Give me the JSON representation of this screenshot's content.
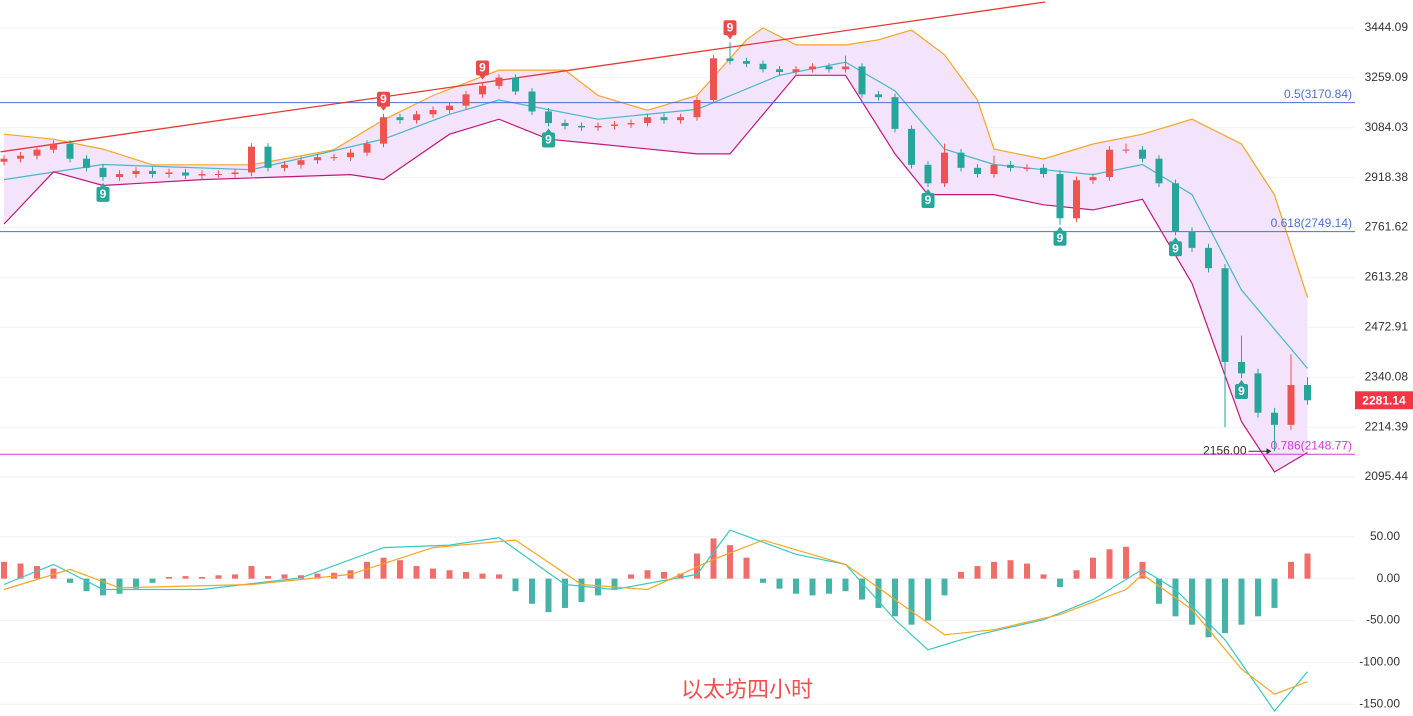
{
  "chart_data": {
    "type": "candlestick",
    "title": "以太坊四小时",
    "up_color": "#ef5350",
    "down_color": "#26a69a",
    "log_scale": true,
    "grid": true,
    "ylim": [
      2007,
      3552
    ],
    "yticks": [
      3444.09,
      3259.09,
      3084.03,
      2918.38,
      2761.62,
      2613.28,
      2472.91,
      2340.08,
      2214.39,
      2095.44
    ],
    "candles": [
      [
        2970,
        2992,
        2958,
        2980
      ],
      [
        2980,
        3002,
        2968,
        2990
      ],
      [
        2990,
        3022,
        2978,
        3010
      ],
      [
        3010,
        3042,
        2998,
        3030
      ],
      [
        3030,
        3042,
        2968,
        2980
      ],
      [
        2980,
        2992,
        2938,
        2950
      ],
      [
        2950,
        2962,
        2908,
        2920
      ],
      [
        2920,
        2942,
        2908,
        2930
      ],
      [
        2930,
        2952,
        2918,
        2940
      ],
      [
        2940,
        2952,
        2918,
        2930
      ],
      [
        2930,
        2947,
        2918,
        2935
      ],
      [
        2935,
        2947,
        2913,
        2925
      ],
      [
        2925,
        2942,
        2913,
        2930
      ],
      [
        2930,
        2942,
        2918,
        2930
      ],
      [
        2930,
        2947,
        2918,
        2935
      ],
      [
        2935,
        3032,
        2923,
        3020
      ],
      [
        3020,
        3032,
        2938,
        2950
      ],
      [
        2950,
        2972,
        2938,
        2960
      ],
      [
        2960,
        2987,
        2948,
        2975
      ],
      [
        2975,
        2997,
        2963,
        2985
      ],
      [
        2985,
        2997,
        2973,
        2985
      ],
      [
        2985,
        3012,
        2973,
        3000
      ],
      [
        3000,
        3042,
        2988,
        3030
      ],
      [
        3030,
        3132,
        3018,
        3120
      ],
      [
        3120,
        3132,
        3098,
        3110
      ],
      [
        3110,
        3142,
        3098,
        3130
      ],
      [
        3130,
        3157,
        3118,
        3145
      ],
      [
        3145,
        3172,
        3133,
        3160
      ],
      [
        3160,
        3212,
        3148,
        3200
      ],
      [
        3200,
        3242,
        3188,
        3230
      ],
      [
        3230,
        3272,
        3218,
        3260
      ],
      [
        3260,
        3272,
        3198,
        3210
      ],
      [
        3210,
        3222,
        3128,
        3140
      ],
      [
        3140,
        3152,
        3088,
        3100
      ],
      [
        3100,
        3112,
        3078,
        3090
      ],
      [
        3090,
        3102,
        3073,
        3085
      ],
      [
        3085,
        3102,
        3073,
        3090
      ],
      [
        3090,
        3107,
        3078,
        3095
      ],
      [
        3095,
        3112,
        3083,
        3100
      ],
      [
        3100,
        3132,
        3088,
        3120
      ],
      [
        3120,
        3132,
        3098,
        3110
      ],
      [
        3110,
        3132,
        3098,
        3120
      ],
      [
        3120,
        3192,
        3108,
        3180
      ],
      [
        3180,
        3342,
        3168,
        3330
      ],
      [
        3330,
        3390,
        3308,
        3320
      ],
      [
        3320,
        3332,
        3298,
        3310
      ],
      [
        3310,
        3322,
        3278,
        3290
      ],
      [
        3290,
        3302,
        3268,
        3280
      ],
      [
        3280,
        3302,
        3268,
        3290
      ],
      [
        3290,
        3312,
        3278,
        3300
      ],
      [
        3300,
        3312,
        3278,
        3290
      ],
      [
        3290,
        3340,
        3278,
        3300
      ],
      [
        3300,
        3312,
        3188,
        3200
      ],
      [
        3200,
        3212,
        3178,
        3190
      ],
      [
        3190,
        3202,
        3068,
        3080
      ],
      [
        3080,
        3092,
        2948,
        2960
      ],
      [
        2960,
        2972,
        2888,
        2900
      ],
      [
        2900,
        3030,
        2888,
        3000
      ],
      [
        3000,
        3012,
        2938,
        2950
      ],
      [
        2950,
        2962,
        2918,
        2930
      ],
      [
        2930,
        2990,
        2918,
        2960
      ],
      [
        2960,
        2972,
        2938,
        2950
      ],
      [
        2950,
        2962,
        2938,
        2950
      ],
      [
        2950,
        2962,
        2918,
        2930
      ],
      [
        2930,
        2942,
        2770,
        2790
      ],
      [
        2790,
        2922,
        2778,
        2910
      ],
      [
        2910,
        2932,
        2898,
        2920
      ],
      [
        2920,
        3022,
        2908,
        3010
      ],
      [
        3010,
        3030,
        2998,
        3010
      ],
      [
        3010,
        3022,
        2968,
        2980
      ],
      [
        2980,
        2992,
        2888,
        2900
      ],
      [
        2900,
        2912,
        2738,
        2750
      ],
      [
        2750,
        2762,
        2688,
        2700
      ],
      [
        2700,
        2712,
        2628,
        2640
      ],
      [
        2640,
        2652,
        2214,
        2380
      ],
      [
        2380,
        2450,
        2338,
        2350
      ],
      [
        2350,
        2362,
        2238,
        2250
      ],
      [
        2250,
        2262,
        2156,
        2220
      ],
      [
        2220,
        2400,
        2208,
        2320
      ],
      [
        2320,
        2340,
        2270,
        2281.14
      ]
    ],
    "bollinger": {
      "fill": "#f3e3fb",
      "upper": {
        "color": "#f5a623",
        "x": [
          0,
          3,
          6,
          9,
          15,
          20,
          23,
          26,
          30,
          34,
          36,
          39,
          42,
          45,
          46,
          48,
          51,
          53,
          55,
          57,
          59,
          60,
          63,
          66,
          69,
          72,
          75,
          77,
          79
        ],
        "values": [
          3062,
          3045,
          3012,
          2960,
          2960,
          3010,
          3111,
          3196,
          3287,
          3287,
          3196,
          3144,
          3196,
          3399,
          3444,
          3380,
          3380,
          3399,
          3436,
          3343,
          3180,
          3012,
          2979,
          3029,
          3062,
          3113,
          3029,
          2863,
          2556
        ]
      },
      "middle": {
        "color": "#45b8c8",
        "x": [
          0,
          6,
          15,
          23,
          27,
          30,
          36,
          42,
          47,
          51,
          54,
          57,
          60,
          63,
          66,
          69,
          72,
          75,
          79
        ],
        "values": [
          2912,
          2961,
          2944,
          3045,
          3130,
          3180,
          3113,
          3147,
          3268,
          3316,
          3212,
          3012,
          2961,
          2944,
          2928,
          2961,
          2864,
          2577,
          2363
        ]
      },
      "lower": {
        "color": "#c2187a",
        "x": [
          0,
          3,
          6,
          12,
          21,
          23,
          27,
          30,
          33,
          36,
          42,
          44,
          48,
          51,
          54,
          56,
          60,
          63,
          66,
          69,
          72,
          75,
          77,
          79
        ],
        "values": [
          2772,
          2937,
          2893,
          2912,
          2928,
          2912,
          3062,
          3113,
          3045,
          3029,
          2996,
          2996,
          3268,
          3268,
          2996,
          2864,
          2864,
          2832,
          2816,
          2849,
          2596,
          2228,
          2107,
          2153
        ]
      }
    },
    "trendline": {
      "color": "#e53935",
      "x": [
        -0.2,
        63.1
      ],
      "values": [
        3003,
        3544
      ]
    },
    "fib_levels": [
      {
        "value": 3170.84,
        "label": "0.5(3170.84)",
        "color": "#4a6fd1"
      },
      {
        "value": 2749.14,
        "label": "0.618(2749.14)",
        "color": "#4a6fd1"
      },
      {
        "value": 2148.77,
        "label": "0.786(2148.77)",
        "color": "#d63ad6"
      }
    ],
    "td_markers": [
      {
        "index": 23,
        "label": "9",
        "side": "sell"
      },
      {
        "index": 29,
        "label": "9",
        "side": "sell"
      },
      {
        "index": 44,
        "label": "9",
        "side": "sell"
      },
      {
        "index": 6,
        "label": "9",
        "side": "buy"
      },
      {
        "index": 33,
        "label": "9",
        "side": "buy"
      },
      {
        "index": 56,
        "label": "9",
        "side": "buy"
      },
      {
        "index": 64,
        "label": "9",
        "side": "buy"
      },
      {
        "index": 71,
        "label": "9",
        "side": "buy"
      },
      {
        "index": 75,
        "label": "9",
        "side": "buy"
      }
    ],
    "low_marker": {
      "index": 77,
      "label": "2156.00"
    },
    "macd": {
      "ylim": [
        -164,
        70
      ],
      "yticks": [
        {
          "value": 50,
          "label": "50.00"
        },
        {
          "value": 0,
          "label": "0.00"
        },
        {
          "value": -50,
          "label": "-50.00"
        },
        {
          "value": -100,
          "label": "-100.00"
        },
        {
          "value": -150,
          "label": "-150.00"
        }
      ],
      "histogram": [
        20,
        18,
        15,
        12,
        -5,
        -15,
        -20,
        -18,
        -12,
        -5,
        2,
        3,
        2,
        4,
        5,
        15,
        3,
        5,
        4,
        6,
        7,
        10,
        20,
        25,
        22,
        15,
        12,
        10,
        8,
        6,
        5,
        -15,
        -30,
        -40,
        -35,
        -28,
        -20,
        -12,
        5,
        10,
        8,
        6,
        30,
        48,
        40,
        25,
        -5,
        -12,
        -18,
        -20,
        -18,
        -15,
        -25,
        -35,
        -45,
        -55,
        -50,
        -20,
        8,
        15,
        20,
        22,
        18,
        5,
        -10,
        10,
        25,
        35,
        38,
        20,
        -30,
        -45,
        -55,
        -70,
        -65,
        -55,
        -45,
        -35,
        20,
        30
      ],
      "dif": {
        "color": "#3cc6c6",
        "x": [
          0,
          3,
          6,
          12,
          18,
          23,
          27,
          30,
          34,
          37,
          42,
          44,
          48,
          51,
          54,
          56,
          59,
          63,
          66,
          69,
          71,
          74,
          77,
          79
        ],
        "values": [
          -7,
          17,
          -13,
          -13,
          1,
          37,
          40,
          49,
          -7,
          -13,
          5,
          58,
          29,
          17,
          -49,
          -85,
          -67,
          -49,
          -25,
          11,
          -13,
          -73,
          -158,
          -111
        ]
      },
      "dea": {
        "color": "#f5a623",
        "x": [
          0,
          4,
          7,
          15,
          21,
          26,
          31,
          35,
          39,
          43,
          46,
          51,
          54,
          57,
          60,
          64,
          68,
          69,
          72,
          75,
          77,
          79
        ],
        "values": [
          -13,
          11,
          -11,
          -7,
          5,
          37,
          46,
          -7,
          -13,
          23,
          46,
          17,
          -25,
          -67,
          -61,
          -43,
          -13,
          5,
          -37,
          -108,
          -138,
          -123
        ]
      }
    }
  }
}
